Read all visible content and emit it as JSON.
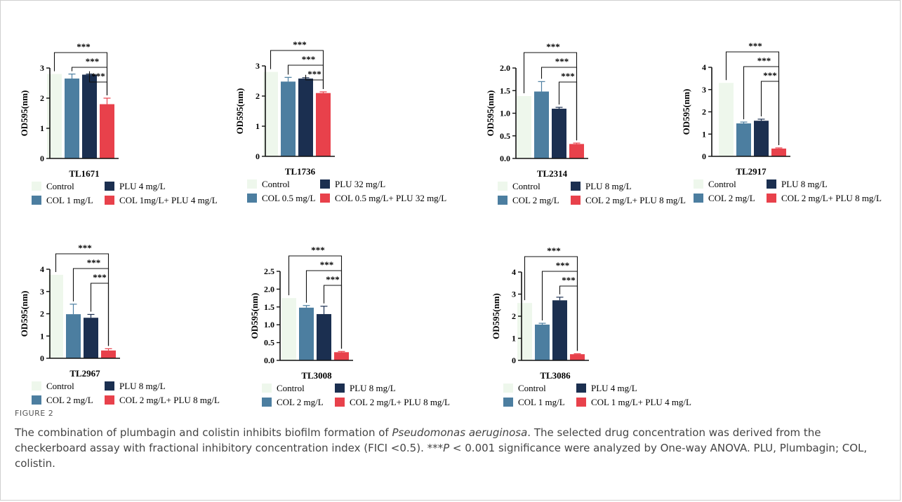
{
  "chart_data": [
    {
      "type": "bar",
      "title": "TL1671",
      "ylabel": "OD595(nm)",
      "ylim": [
        0,
        3
      ],
      "yticks": [
        "0",
        "1",
        "2",
        "3"
      ],
      "categories": [
        "Control",
        "COL 1 mg/L",
        "PLU 4 mg/L",
        "COL 1mg/L+ PLU 4 mg/L"
      ],
      "values": [
        2.8,
        2.65,
        2.78,
        1.8
      ],
      "errors": [
        0,
        0.15,
        0.02,
        0.2
      ],
      "significance": [
        "***",
        "***",
        "***"
      ]
    },
    {
      "type": "bar",
      "title": "TL1736",
      "ylabel": "OD595(nm)",
      "ylim": [
        0,
        3
      ],
      "yticks": [
        "0",
        "1",
        "2",
        "3"
      ],
      "categories": [
        "Control",
        "COL 0.5 mg/L",
        "PLU 32 mg/L",
        "COL 0.5 mg/L+ PLU 32 mg/L"
      ],
      "values": [
        2.8,
        2.48,
        2.58,
        2.1
      ],
      "errors": [
        0,
        0.14,
        0.03,
        0.04
      ],
      "significance": [
        "***",
        "***",
        "***"
      ]
    },
    {
      "type": "bar",
      "title": "TL2314",
      "ylabel": "OD595(nm)",
      "ylim": [
        0,
        2.0
      ],
      "yticks": [
        "0.0",
        "0.5",
        "1.0",
        "1.5",
        "2.0"
      ],
      "categories": [
        "Control",
        "COL 2 mg/L",
        "PLU 8 mg/L",
        "COL 2 mg/L+ PLU 8 mg/L"
      ],
      "values": [
        1.38,
        1.48,
        1.1,
        0.32
      ],
      "errors": [
        0,
        0.22,
        0.03,
        0.02
      ],
      "significance": [
        "***",
        "***",
        "***"
      ]
    },
    {
      "type": "bar",
      "title": "TL2917",
      "ylabel": "OD595(nm)",
      "ylim": [
        0,
        4
      ],
      "yticks": [
        "0",
        "1",
        "2",
        "3",
        "4"
      ],
      "categories": [
        "Control",
        "COL 2 mg/L",
        "PLU 8 mg/L",
        "COL 2 mg/L+ PLU 8 mg/L"
      ],
      "values": [
        3.3,
        1.48,
        1.6,
        0.35
      ],
      "errors": [
        0,
        0.06,
        0.07,
        0.03
      ],
      "significance": [
        "***",
        "***",
        "***"
      ]
    },
    {
      "type": "bar",
      "title": "TL2967",
      "ylabel": "OD595(nm)",
      "ylim": [
        0,
        4
      ],
      "yticks": [
        "0",
        "1",
        "2",
        "3",
        "4"
      ],
      "categories": [
        "Control",
        "COL 2 mg/L",
        "PLU 8 mg/L",
        "COL 2 mg/L+ PLU 8 mg/L"
      ],
      "values": [
        3.75,
        1.98,
        1.82,
        0.35
      ],
      "errors": [
        0,
        0.45,
        0.15,
        0.08
      ],
      "significance": [
        "***",
        "***",
        "***"
      ]
    },
    {
      "type": "bar",
      "title": "TL3008",
      "ylabel": "OD595(nm)",
      "ylim": [
        0,
        2.5
      ],
      "yticks": [
        "0.0",
        "0.5",
        "1.0",
        "1.5",
        "2.0",
        "2.5"
      ],
      "categories": [
        "Control",
        "COL 2 mg/L",
        "PLU 8 mg/L",
        "COL 2 mg/L+ PLU 8 mg/L"
      ],
      "values": [
        1.75,
        1.48,
        1.3,
        0.23
      ],
      "errors": [
        0,
        0.06,
        0.22,
        0.02
      ],
      "significance": [
        "***",
        "***",
        "***"
      ]
    },
    {
      "type": "bar",
      "title": "TL3086",
      "ylabel": "OD595(nm)",
      "ylim": [
        0,
        4
      ],
      "yticks": [
        "0",
        "1",
        "2",
        "3",
        "4"
      ],
      "categories": [
        "Control",
        "COL 1 mg/L",
        "PLU 4 mg/L",
        "COL 1 mg/L+ PLU 4 mg/L"
      ],
      "values": [
        2.6,
        1.62,
        2.72,
        0.28
      ],
      "errors": [
        0,
        0.06,
        0.14,
        0.02
      ],
      "significance": [
        "***",
        "***",
        "***"
      ]
    }
  ],
  "colors": {
    "control": "#eef7ec",
    "col": "#4c7ea0",
    "plu": "#1b2f50",
    "combo": "#e8414b",
    "axis": "#111111"
  },
  "caption": {
    "figure_label": "FIGURE 2",
    "text_1": "The combination of plumbagin and colistin inhibits biofilm formation of ",
    "species": "Pseudomonas aeruginosa",
    "text_2": ". The selected drug concentration was derived from the checkerboard assay with fractional inhibitory concentration index (FICI <0.5). ***",
    "p_symbol": "P",
    "text_3": " < 0.001 significance were analyzed by One-way ANOVA. PLU, Plumbagin; COL, colistin."
  }
}
